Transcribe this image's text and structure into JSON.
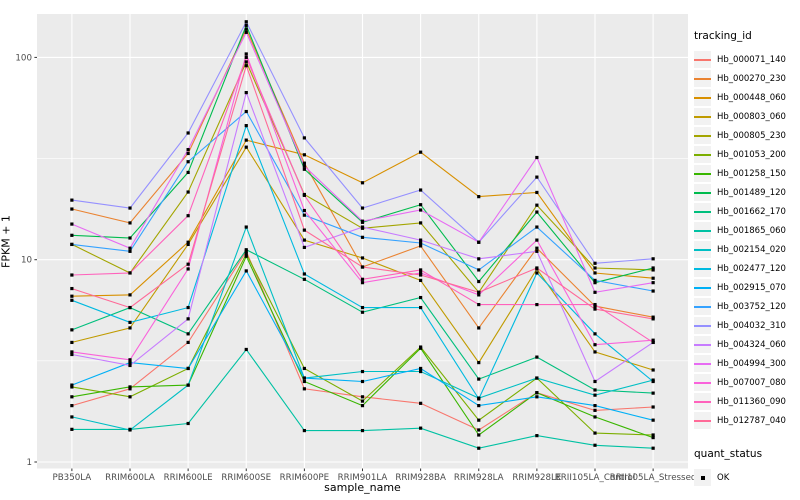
{
  "figure": {
    "background": "#FFFFFF",
    "panel_background": "#EBEBEB",
    "grid_color": "#FFFFFF",
    "axis_text_color": "#4D4D4D",
    "xlabel": "sample_name",
    "ylabel": "FPKM + 1"
  },
  "legend": {
    "tracking_title": "tracking_id",
    "quant_title": "quant_status",
    "quant_items": [
      {
        "label": "OK",
        "symbol": "black-square"
      }
    ]
  },
  "chart_data": {
    "type": "line",
    "title": "",
    "xlabel": "sample_name",
    "ylabel": "FPKM + 1",
    "x_axis": {
      "categories": [
        "PB350LA",
        "RRIM600LA",
        "RRIM600LE",
        "RRIM600SE",
        "RRIM600PE",
        "RRIM901LA",
        "RRIM928BA",
        "RRIM928LA",
        "RRIM928LE",
        "RRII105LA_Control",
        "RRII105LA_Stressed"
      ]
    },
    "y_axis": {
      "scale": "log10",
      "ticks": [
        1,
        10,
        100
      ],
      "range_approx": [
        1.1,
        160
      ]
    },
    "grid": {
      "major": true,
      "minor_log_midpoints": true
    },
    "legend_position": "right",
    "point_marker": "black-square",
    "series": [
      {
        "name": "Hb_000071_140",
        "color": "#F8766D",
        "values": [
          1.9,
          2.3,
          3.9,
          11.0,
          2.3,
          2.1,
          1.95,
          1.44,
          2.2,
          1.8,
          1.87
        ]
      },
      {
        "name": "Hb_000270_230",
        "color": "#EA8331",
        "values": [
          17.8,
          15.2,
          33.5,
          138,
          30,
          9.2,
          11.7,
          4.6,
          11.4,
          5.9,
          5.2
        ]
      },
      {
        "name": "Hb_000448_060",
        "color": "#D89000",
        "values": [
          6.6,
          6.7,
          12.2,
          39,
          33,
          24,
          34,
          20.5,
          21.5,
          8.6,
          8.1
        ]
      },
      {
        "name": "Hb_000803_060",
        "color": "#C09B00",
        "values": [
          3.9,
          4.6,
          11.9,
          36,
          12.5,
          10.2,
          7.9,
          3.1,
          9.0,
          3.5,
          2.85
        ]
      },
      {
        "name": "Hb_000805_230",
        "color": "#A3A500",
        "values": [
          11.9,
          8.6,
          21.6,
          95,
          21,
          14.3,
          15.2,
          6.9,
          18.6,
          9.1,
          8.9
        ]
      },
      {
        "name": "Hb_001053_200",
        "color": "#7CAE00",
        "values": [
          2.35,
          2.1,
          2.9,
          10.7,
          2.9,
          2.0,
          3.7,
          1.61,
          2.6,
          1.39,
          1.36
        ]
      },
      {
        "name": "Hb_001258_150",
        "color": "#39B600",
        "values": [
          2.1,
          2.35,
          2.4,
          10.4,
          2.5,
          1.9,
          3.65,
          1.36,
          2.2,
          1.67,
          1.32
        ]
      },
      {
        "name": "Hb_001489_120",
        "color": "#00BB4E",
        "values": [
          13.2,
          12.8,
          27,
          144,
          28,
          15.3,
          18.7,
          7.8,
          17.2,
          7.7,
          9.1
        ]
      },
      {
        "name": "Hb_001662_170",
        "color": "#00BF7D",
        "values": [
          4.5,
          5.8,
          4.3,
          11.2,
          8.0,
          5.5,
          6.5,
          2.57,
          3.3,
          2.27,
          2.19
        ]
      },
      {
        "name": "Hb_001865_060",
        "color": "#00C1A3",
        "values": [
          1.45,
          1.45,
          1.55,
          3.6,
          1.43,
          1.43,
          1.47,
          1.17,
          1.35,
          1.21,
          1.17
        ]
      },
      {
        "name": "Hb_002154_020",
        "color": "#00BFC4",
        "values": [
          1.67,
          1.44,
          2.4,
          14.5,
          2.6,
          2.8,
          2.8,
          2.07,
          2.6,
          2.14,
          2.54
        ]
      },
      {
        "name": "Hb_002477_120",
        "color": "#00BAE0",
        "values": [
          6.3,
          4.9,
          5.8,
          46,
          8.5,
          5.8,
          5.8,
          2.05,
          8.6,
          4.3,
          2.5
        ]
      },
      {
        "name": "Hb_002915_070",
        "color": "#00B0F6",
        "values": [
          2.4,
          3.1,
          2.9,
          8.8,
          2.6,
          2.5,
          2.9,
          1.9,
          2.1,
          1.9,
          1.61
        ]
      },
      {
        "name": "Hb_003752_120",
        "color": "#35A2FF",
        "values": [
          11.9,
          11.0,
          30.5,
          54,
          16.6,
          12.9,
          12.1,
          8.9,
          14.5,
          7.9,
          7.0
        ]
      },
      {
        "name": "Hb_004032_310",
        "color": "#9590FF",
        "values": [
          19.7,
          18.0,
          42.3,
          150,
          40,
          18.0,
          22.1,
          12.2,
          25.6,
          9.6,
          10.1
        ]
      },
      {
        "name": "Hb_004324_060",
        "color": "#C77CFF",
        "values": [
          3.4,
          3.0,
          5.1,
          67,
          11.5,
          14.5,
          12.5,
          10.1,
          11.0,
          2.5,
          3.9
        ]
      },
      {
        "name": "Hb_004994_300",
        "color": "#E76BF3",
        "values": [
          15.0,
          11.4,
          35,
          133,
          29,
          15.5,
          17.6,
          12.2,
          32,
          6.9,
          7.7
        ]
      },
      {
        "name": "Hb_007007_080",
        "color": "#FA62DB",
        "values": [
          3.5,
          3.2,
          9.0,
          104,
          17.5,
          7.7,
          8.6,
          6.7,
          12.5,
          3.8,
          4.0
        ]
      },
      {
        "name": "Hb_011360_090",
        "color": "#FF62BC",
        "values": [
          8.4,
          8.6,
          16.5,
          100,
          20.8,
          8.0,
          8.9,
          6.0,
          6.0,
          6.0,
          3.9
        ]
      },
      {
        "name": "Hb_012787_040",
        "color": "#FF6A98",
        "values": [
          7.2,
          5.8,
          9.5,
          91,
          14,
          9.2,
          8.4,
          6.9,
          9.1,
          5.7,
          5.1
        ]
      }
    ]
  }
}
